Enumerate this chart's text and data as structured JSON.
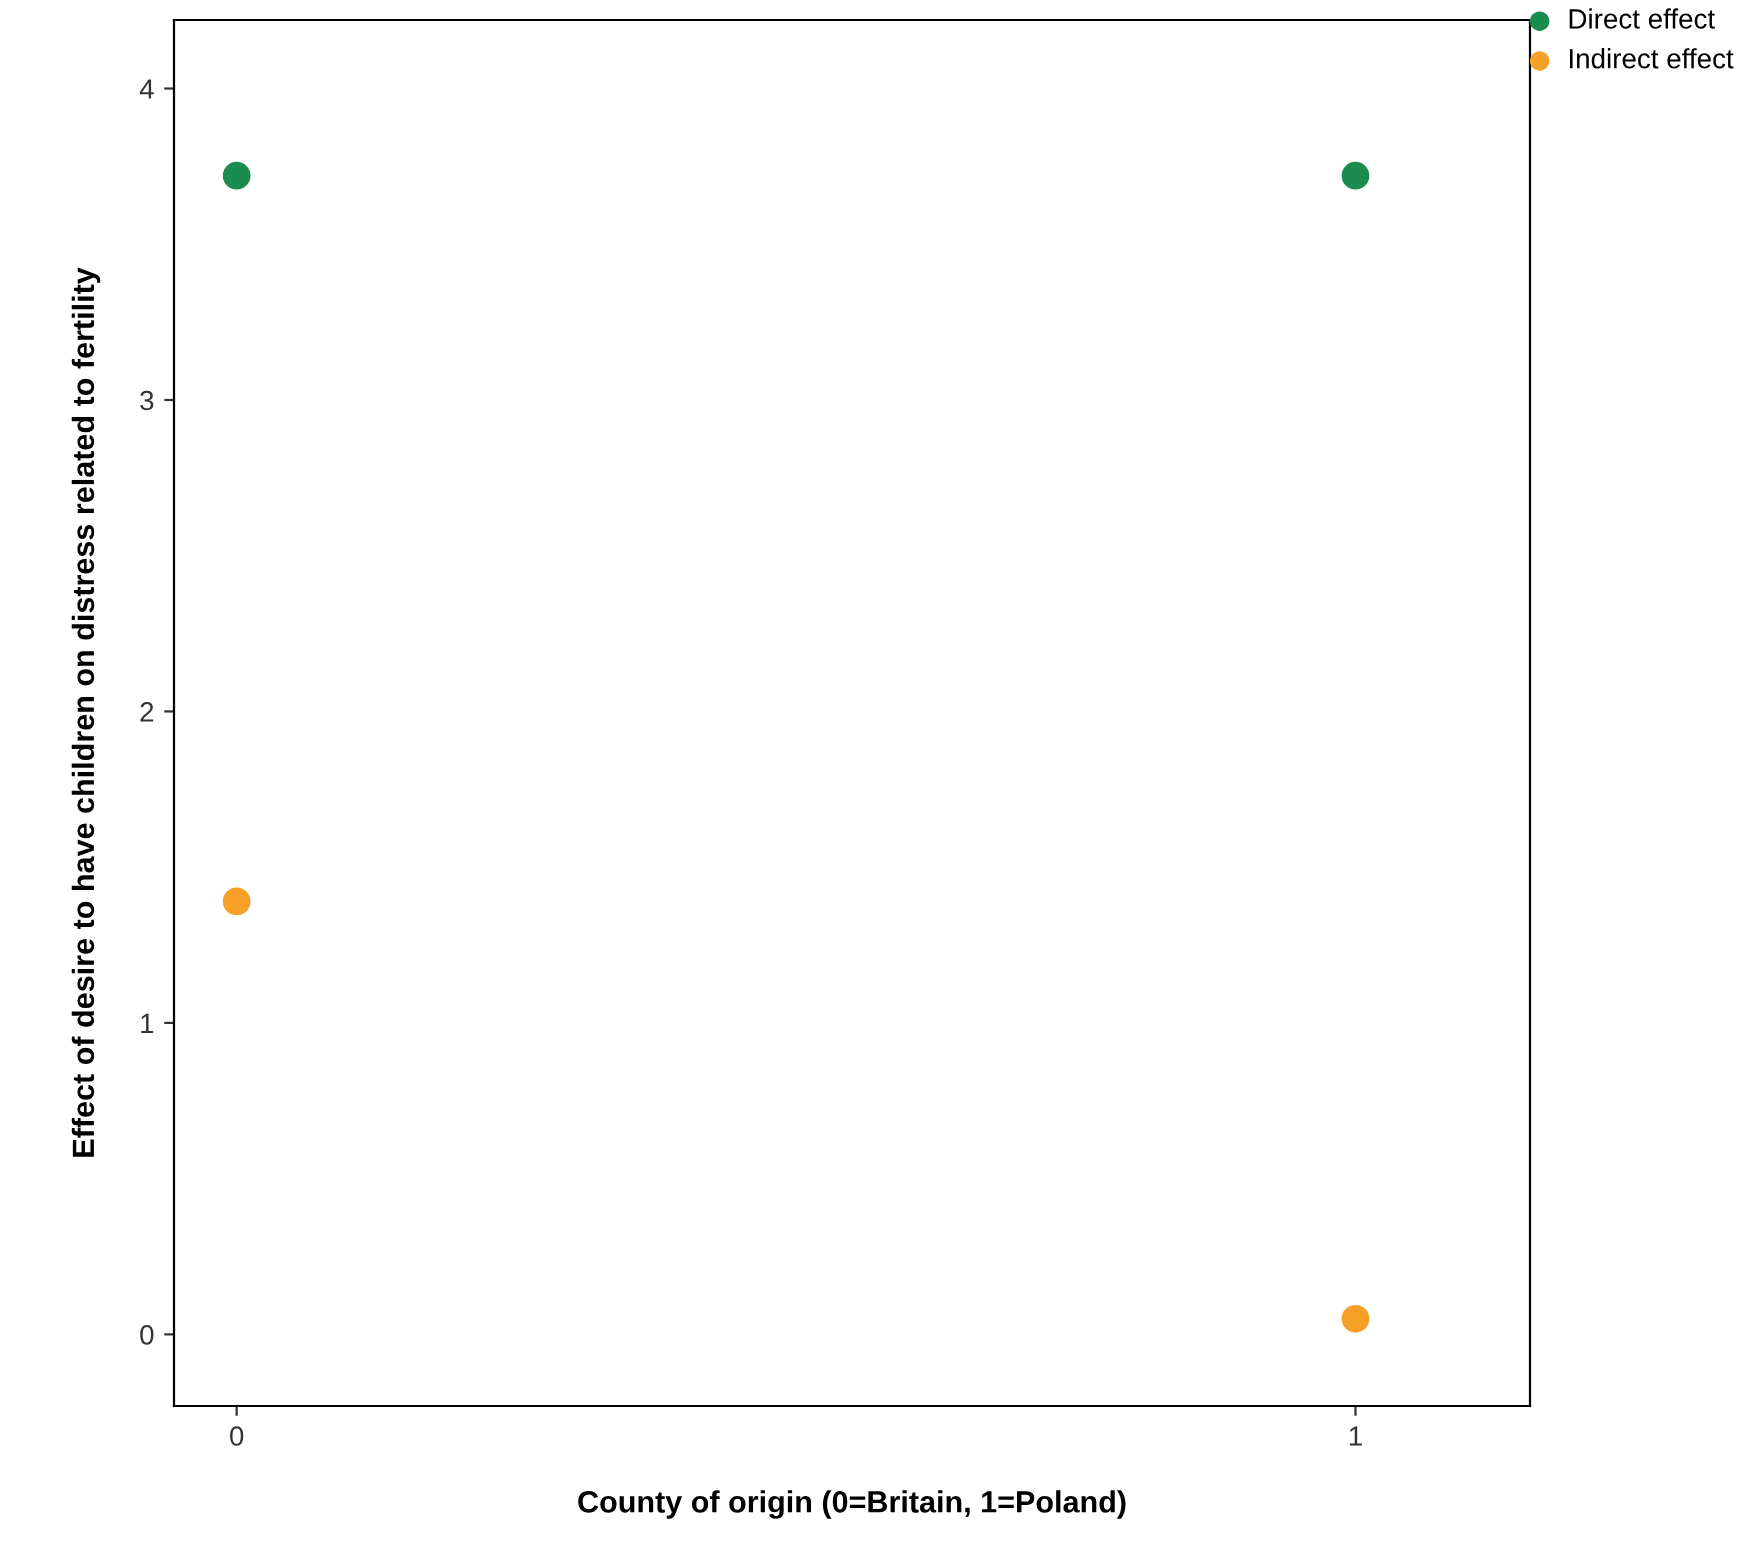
{
  "chart_data": {
    "type": "scatter",
    "xlabel": "County of origin (0=Britain, 1=Poland)",
    "ylabel": "Effect of desire to have children on distress related to fertility",
    "x": [
      0,
      1
    ],
    "series": [
      {
        "name": "Direct effect",
        "color": "#1a8c4e",
        "values": [
          3.72,
          3.72
        ]
      },
      {
        "name": "Indirect effect",
        "color": "#f5a128",
        "values": [
          1.39,
          0.05
        ]
      }
    ],
    "xlim": [
      -0.056,
      1.156
    ],
    "ylim": [
      -0.23,
      4.22
    ],
    "xticks": [
      0,
      1
    ],
    "yticks": [
      0,
      1,
      2,
      3,
      4
    ],
    "grid": false,
    "legend": "top right",
    "marker": "circle"
  }
}
